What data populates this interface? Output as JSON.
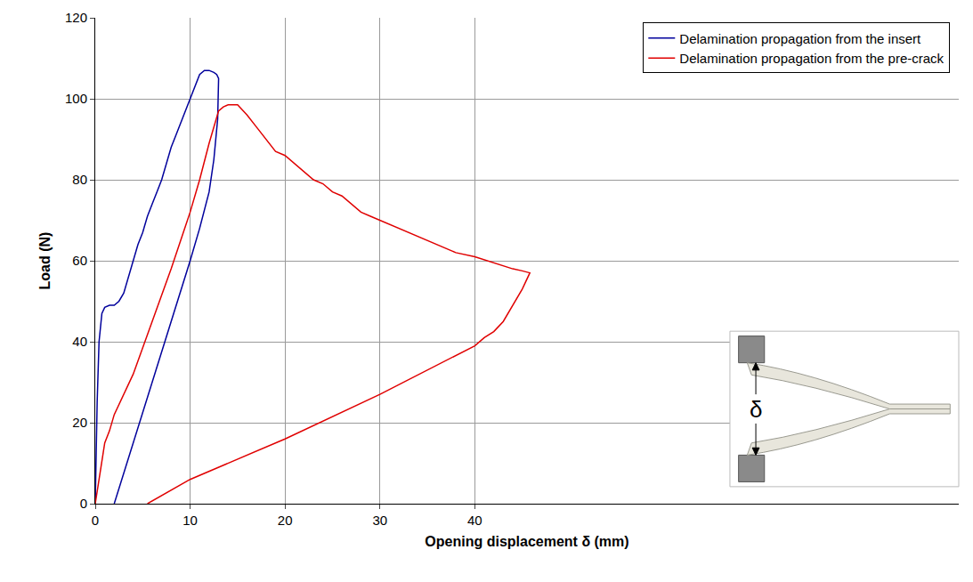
{
  "chart_data": {
    "type": "line",
    "x_label": "Opening displacement δ (mm)",
    "y_label": "Load (N)",
    "xlim": [
      0,
      91
    ],
    "ylim": [
      0,
      120
    ],
    "xticks": [
      0,
      10,
      20,
      30,
      40
    ],
    "yticks": [
      0,
      20,
      40,
      60,
      80,
      100,
      120
    ],
    "grid": true,
    "legend": "top right",
    "annotations": [
      {
        "text": "δ"
      }
    ],
    "series": [
      {
        "name": "Delamination propagation from the insert",
        "color": "#00009c",
        "x": [
          0,
          0.2,
          0.4,
          0.7,
          1,
          1.5,
          2,
          2.5,
          3,
          3.5,
          4,
          4.5,
          5,
          5.5,
          6,
          6.3,
          6.5,
          7,
          7.5,
          8,
          8.5,
          9,
          9.5,
          10,
          10.5,
          11,
          11.5,
          12,
          12.5,
          12.8,
          13,
          12.9,
          12.5,
          12,
          11,
          10,
          8,
          6,
          4,
          2
        ],
        "values": [
          0,
          25,
          40,
          47,
          48.5,
          49,
          49,
          50,
          52,
          56,
          60,
          64,
          67,
          71,
          74,
          76,
          77,
          80,
          84,
          88,
          91,
          94,
          97,
          100,
          103,
          106,
          107,
          107,
          106.5,
          106,
          105,
          95,
          85,
          77,
          68,
          60,
          45,
          30,
          15,
          0
        ]
      },
      {
        "name": "Delamination propagation from the pre-crack",
        "color": "#e00000",
        "x": [
          0,
          0.5,
          1,
          1.5,
          2,
          4,
          6,
          8,
          10,
          11,
          12,
          13,
          13.5,
          14,
          15,
          16,
          17,
          18,
          19,
          20,
          21,
          22,
          23,
          24,
          25,
          26,
          27,
          28,
          29,
          30,
          32,
          34,
          36,
          38,
          40,
          42,
          44,
          45,
          45.8,
          45,
          44,
          43,
          42,
          41,
          40,
          30,
          20,
          10,
          5.5
        ],
        "values": [
          0,
          8,
          15,
          18,
          22,
          32,
          45,
          58,
          72,
          80,
          89,
          97,
          98,
          98.5,
          98.5,
          96,
          93,
          90,
          87,
          86,
          84,
          82,
          80,
          79,
          77,
          76,
          74,
          72,
          71,
          70,
          68,
          66,
          64,
          62,
          61,
          59.5,
          58,
          57.5,
          57,
          53,
          49,
          45,
          42.5,
          41,
          39,
          27,
          16,
          6,
          0
        ]
      }
    ]
  }
}
